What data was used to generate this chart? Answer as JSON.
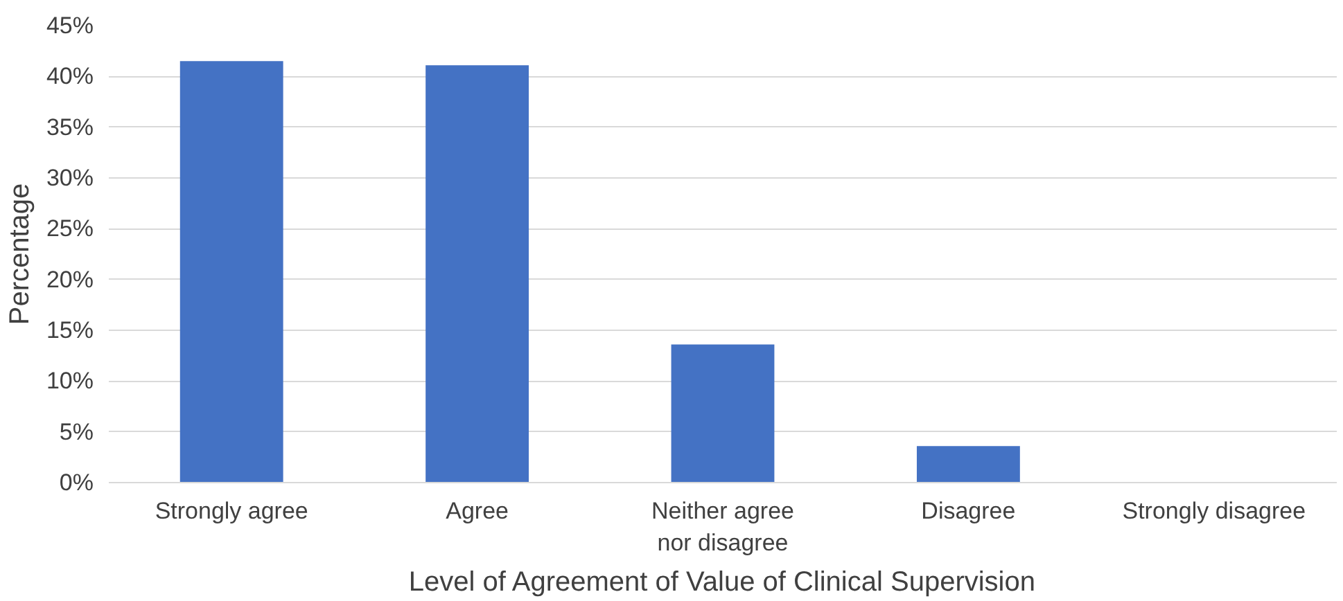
{
  "chart_data": {
    "type": "bar",
    "xlabel": "Level of Agreement of Value of Clinical Supervision",
    "ylabel": "Percentage",
    "categories": [
      "Strongly agree",
      "Agree",
      "Neither agree\nnor disagree",
      "Disagree",
      "Strongly disagree"
    ],
    "values": [
      41.5,
      41.1,
      13.6,
      3.6,
      0
    ],
    "color": "#4472c4",
    "ylim": [
      0,
      45
    ],
    "yticks": [
      {
        "value": 0,
        "label": "0%"
      },
      {
        "value": 5,
        "label": "5%"
      },
      {
        "value": 10,
        "label": "10%"
      },
      {
        "value": 15,
        "label": "15%"
      },
      {
        "value": 20,
        "label": "20%"
      },
      {
        "value": 25,
        "label": "25%"
      },
      {
        "value": 30,
        "label": "30%"
      },
      {
        "value": 35,
        "label": "35%"
      },
      {
        "value": 40,
        "label": "40%"
      },
      {
        "value": 45,
        "label": "45%"
      }
    ],
    "grid": "y"
  }
}
